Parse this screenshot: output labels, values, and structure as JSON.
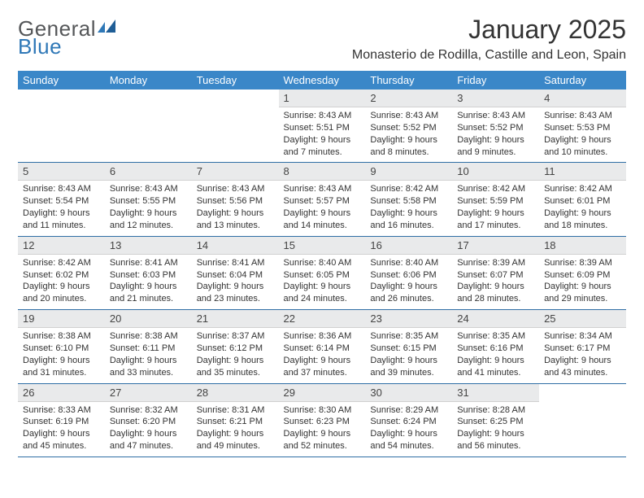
{
  "brand": {
    "part1": "General",
    "part2": "Blue"
  },
  "title": {
    "month": "January 2025",
    "location": "Monasterio de Rodilla, Castille and Leon, Spain"
  },
  "colors": {
    "header_bg": "#3a87c8",
    "header_text": "#ffffff",
    "daynum_bg": "#e9eaeb",
    "rule": "#2f6ea5",
    "logo_gray": "#555759",
    "logo_blue": "#2f78b7",
    "body_text": "#333333",
    "background": "#ffffff"
  },
  "weekdays": [
    "Sunday",
    "Monday",
    "Tuesday",
    "Wednesday",
    "Thursday",
    "Friday",
    "Saturday"
  ],
  "first_weekday_index": 3,
  "days": [
    {
      "n": 1,
      "sunrise": "8:43 AM",
      "sunset": "5:51 PM",
      "daylight": "9 hours and 7 minutes."
    },
    {
      "n": 2,
      "sunrise": "8:43 AM",
      "sunset": "5:52 PM",
      "daylight": "9 hours and 8 minutes."
    },
    {
      "n": 3,
      "sunrise": "8:43 AM",
      "sunset": "5:52 PM",
      "daylight": "9 hours and 9 minutes."
    },
    {
      "n": 4,
      "sunrise": "8:43 AM",
      "sunset": "5:53 PM",
      "daylight": "9 hours and 10 minutes."
    },
    {
      "n": 5,
      "sunrise": "8:43 AM",
      "sunset": "5:54 PM",
      "daylight": "9 hours and 11 minutes."
    },
    {
      "n": 6,
      "sunrise": "8:43 AM",
      "sunset": "5:55 PM",
      "daylight": "9 hours and 12 minutes."
    },
    {
      "n": 7,
      "sunrise": "8:43 AM",
      "sunset": "5:56 PM",
      "daylight": "9 hours and 13 minutes."
    },
    {
      "n": 8,
      "sunrise": "8:43 AM",
      "sunset": "5:57 PM",
      "daylight": "9 hours and 14 minutes."
    },
    {
      "n": 9,
      "sunrise": "8:42 AM",
      "sunset": "5:58 PM",
      "daylight": "9 hours and 16 minutes."
    },
    {
      "n": 10,
      "sunrise": "8:42 AM",
      "sunset": "5:59 PM",
      "daylight": "9 hours and 17 minutes."
    },
    {
      "n": 11,
      "sunrise": "8:42 AM",
      "sunset": "6:01 PM",
      "daylight": "9 hours and 18 minutes."
    },
    {
      "n": 12,
      "sunrise": "8:42 AM",
      "sunset": "6:02 PM",
      "daylight": "9 hours and 20 minutes."
    },
    {
      "n": 13,
      "sunrise": "8:41 AM",
      "sunset": "6:03 PM",
      "daylight": "9 hours and 21 minutes."
    },
    {
      "n": 14,
      "sunrise": "8:41 AM",
      "sunset": "6:04 PM",
      "daylight": "9 hours and 23 minutes."
    },
    {
      "n": 15,
      "sunrise": "8:40 AM",
      "sunset": "6:05 PM",
      "daylight": "9 hours and 24 minutes."
    },
    {
      "n": 16,
      "sunrise": "8:40 AM",
      "sunset": "6:06 PM",
      "daylight": "9 hours and 26 minutes."
    },
    {
      "n": 17,
      "sunrise": "8:39 AM",
      "sunset": "6:07 PM",
      "daylight": "9 hours and 28 minutes."
    },
    {
      "n": 18,
      "sunrise": "8:39 AM",
      "sunset": "6:09 PM",
      "daylight": "9 hours and 29 minutes."
    },
    {
      "n": 19,
      "sunrise": "8:38 AM",
      "sunset": "6:10 PM",
      "daylight": "9 hours and 31 minutes."
    },
    {
      "n": 20,
      "sunrise": "8:38 AM",
      "sunset": "6:11 PM",
      "daylight": "9 hours and 33 minutes."
    },
    {
      "n": 21,
      "sunrise": "8:37 AM",
      "sunset": "6:12 PM",
      "daylight": "9 hours and 35 minutes."
    },
    {
      "n": 22,
      "sunrise": "8:36 AM",
      "sunset": "6:14 PM",
      "daylight": "9 hours and 37 minutes."
    },
    {
      "n": 23,
      "sunrise": "8:35 AM",
      "sunset": "6:15 PM",
      "daylight": "9 hours and 39 minutes."
    },
    {
      "n": 24,
      "sunrise": "8:35 AM",
      "sunset": "6:16 PM",
      "daylight": "9 hours and 41 minutes."
    },
    {
      "n": 25,
      "sunrise": "8:34 AM",
      "sunset": "6:17 PM",
      "daylight": "9 hours and 43 minutes."
    },
    {
      "n": 26,
      "sunrise": "8:33 AM",
      "sunset": "6:19 PM",
      "daylight": "9 hours and 45 minutes."
    },
    {
      "n": 27,
      "sunrise": "8:32 AM",
      "sunset": "6:20 PM",
      "daylight": "9 hours and 47 minutes."
    },
    {
      "n": 28,
      "sunrise": "8:31 AM",
      "sunset": "6:21 PM",
      "daylight": "9 hours and 49 minutes."
    },
    {
      "n": 29,
      "sunrise": "8:30 AM",
      "sunset": "6:23 PM",
      "daylight": "9 hours and 52 minutes."
    },
    {
      "n": 30,
      "sunrise": "8:29 AM",
      "sunset": "6:24 PM",
      "daylight": "9 hours and 54 minutes."
    },
    {
      "n": 31,
      "sunrise": "8:28 AM",
      "sunset": "6:25 PM",
      "daylight": "9 hours and 56 minutes."
    }
  ],
  "labels": {
    "sunrise": "Sunrise:",
    "sunset": "Sunset:",
    "daylight": "Daylight:"
  }
}
